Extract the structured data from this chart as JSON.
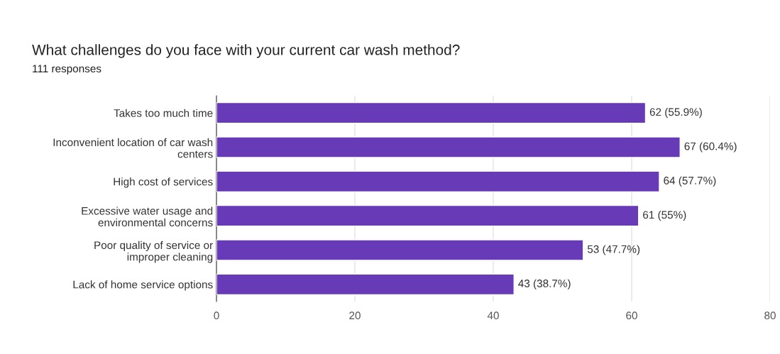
{
  "chart_data": {
    "type": "bar",
    "orientation": "horizontal",
    "title": "What challenges do you face with your current car wash method?",
    "subtitle": "111 responses",
    "categories": [
      "Takes too much time",
      "Inconvenient location of car wash\ncenters",
      "High cost of services",
      "Excessive water usage and\nenvironmental concerns",
      "Poor quality of service or\nimproper cleaning",
      "Lack of home service options"
    ],
    "values": [
      62,
      67,
      64,
      61,
      53,
      43
    ],
    "value_labels": [
      "62 (55.9%)",
      "67 (60.4%)",
      "64 (57.7%)",
      "61 (55%)",
      "53 (47.7%)",
      "43 (38.7%)"
    ],
    "color": "#673ab7",
    "xlim": [
      0,
      80
    ],
    "xticks": [
      0,
      20,
      40,
      60,
      80
    ],
    "grid": "x"
  }
}
